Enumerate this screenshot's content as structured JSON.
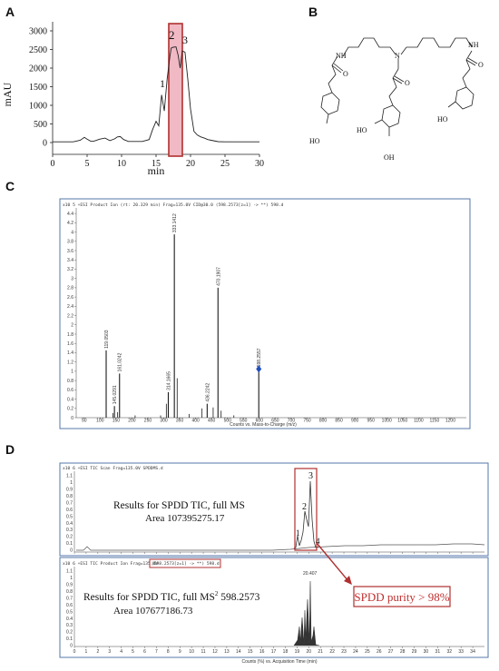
{
  "panels": {
    "a": "A",
    "b": "B",
    "c": "C",
    "d": "D"
  },
  "chart_data": [
    {
      "type": "line",
      "panel": "A",
      "xlabel": "min",
      "ylabel": "mAU",
      "xlim": [
        0,
        30
      ],
      "ylim": [
        0,
        3000
      ],
      "xticks": [
        "0",
        "5",
        "10",
        "15",
        "20",
        "25",
        "30"
      ],
      "yticks": [
        "0",
        "500",
        "1000",
        "1500",
        "2000",
        "2500",
        "3000"
      ],
      "peak_labels": [
        "1",
        "2",
        "3"
      ],
      "x": [
        0,
        3,
        4,
        4.6,
        5,
        5.5,
        6,
        6.8,
        7.6,
        8.3,
        9,
        9.4,
        9.8,
        10.3,
        11,
        13,
        14,
        14.5,
        15,
        15.4,
        15.8,
        16.2,
        16.6,
        17,
        17.2,
        17.5,
        17.9,
        18.2,
        18.5,
        18.8,
        19.2,
        19.6,
        20,
        20.5,
        21,
        21.5,
        22,
        22.5,
        23,
        24,
        25,
        30
      ],
      "values": [
        20,
        20,
        60,
        140,
        90,
        40,
        40,
        90,
        120,
        50,
        100,
        150,
        160,
        80,
        30,
        30,
        80,
        350,
        570,
        450,
        1280,
        850,
        1700,
        2300,
        2540,
        2560,
        2570,
        2350,
        2000,
        2460,
        2430,
        1700,
        900,
        300,
        200,
        150,
        120,
        80,
        60,
        25,
        20,
        20
      ]
    },
    {
      "type": "bar",
      "panel": "C",
      "scan_info": "x10 5  +ESI Product Ion (rt: 20.329 min) Frag=135.0V CID@30.0 (598.2573[z=1] -> **) 598.d",
      "xlabel": "Counts vs. Mass-to-Charge (m/z)",
      "xlim": [
        25,
        1250
      ],
      "ylim": [
        0,
        4.5
      ],
      "ytick_labels": [
        "0",
        "0.2",
        "0.4",
        "0.6",
        "0.8",
        "1",
        "1.2",
        "1.4",
        "1.6",
        "1.8",
        "2",
        "2.2",
        "2.4",
        "2.6",
        "2.8",
        "3",
        "3.2",
        "3.4",
        "3.6",
        "3.8",
        "4",
        "4.2",
        "4.4"
      ],
      "xtick_labels": [
        "50",
        "100",
        "150",
        "200",
        "250",
        "300",
        "350",
        "400",
        "450",
        "500",
        "550",
        "600",
        "650",
        "700",
        "750",
        "800",
        "850",
        "900",
        "950",
        "1000",
        "1050",
        "1100",
        "1150",
        "1200"
      ],
      "x": [
        119.0503,
        145.0291,
        161.0242,
        314.1665,
        333.1412,
        436.2242,
        470.1907,
        598.2557
      ],
      "values": [
        1.45,
        0.25,
        0.95,
        0.55,
        3.95,
        0.3,
        2.8,
        1.05
      ],
      "labels": [
        "119.0503",
        "145.0291",
        "161.0242",
        "314.1665",
        "333.1412",
        "436.2242",
        "470.1907",
        "598.2557"
      ]
    },
    {
      "type": "line",
      "panel": "D",
      "top_header": "x10 6  +ESI TIC Scan Frag=135.0V SPDDMS.d",
      "bottom_header": "x10 6  +ESI TIC Product Ion Frag=135.0V",
      "bottom_header_boxed": "(598.2573[z=1] -> **) 598.d",
      "xlabel": "Counts (%) vs. Acquisition Time (min)",
      "xlim": [
        0,
        35
      ],
      "xtick_labels": [
        "0",
        "1",
        "2",
        "3",
        "4",
        "5",
        "6",
        "7",
        "8",
        "9",
        "10",
        "11",
        "12",
        "13",
        "14",
        "15",
        "16",
        "17",
        "18",
        "19",
        "20",
        "21",
        "22",
        "23",
        "24",
        "25",
        "26",
        "27",
        "28",
        "29",
        "30",
        "31",
        "32",
        "33",
        "34"
      ],
      "ytick_labels_top": [
        "0",
        "0.1",
        "0.2",
        "0.3",
        "0.4",
        "0.5",
        "0.6",
        "0.7",
        "0.8",
        "0.9",
        "1",
        "1.1"
      ],
      "ytick_labels_bottom": [
        "0",
        "0.1",
        "0.2",
        "0.3",
        "0.4",
        "0.5",
        "0.6",
        "0.7",
        "0.8",
        "0.9",
        "1",
        "1.1"
      ],
      "top_text_1": "Results for  SPDD TIC, full MS",
      "top_text_2": "Area 107395275.17",
      "bottom_text_1": "Results for  SPDD TIC, full MS",
      "bottom_text_sup": "2",
      "bottom_text_1b": " 598.2573",
      "bottom_text_2": "Area 107677186.73",
      "peak_labels": [
        "1",
        "2",
        "3",
        "4"
      ],
      "peak_time_label": "20.407",
      "purity_label": "SPDD purity > 98%"
    }
  ],
  "structure": {
    "labels": [
      "NH",
      "N",
      "NH",
      "O",
      "O",
      "O",
      "HO",
      "HO",
      "OH",
      "HO"
    ]
  }
}
